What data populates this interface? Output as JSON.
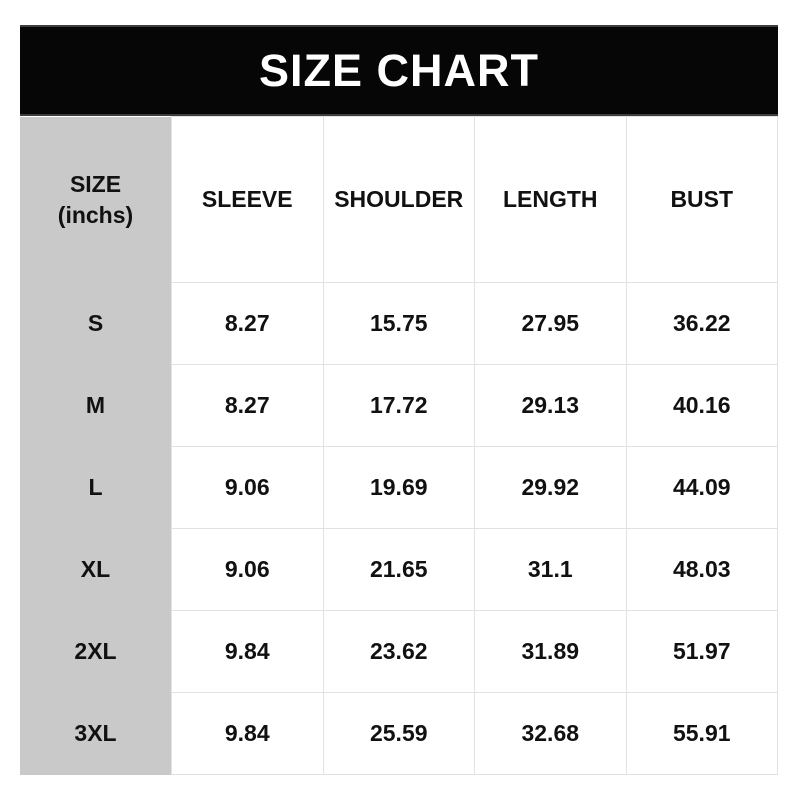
{
  "header": {
    "title": "SIZE CHART"
  },
  "table": {
    "size_header": {
      "line1": "SIZE",
      "line2": "(inchs)"
    },
    "columns": [
      "SLEEVE",
      "SHOULDER",
      "LENGTH",
      "BUST"
    ],
    "rows": [
      {
        "size": "S",
        "values": [
          "8.27",
          "15.75",
          "27.95",
          "36.22"
        ]
      },
      {
        "size": "M",
        "values": [
          "8.27",
          "17.72",
          "29.13",
          "40.16"
        ]
      },
      {
        "size": "L",
        "values": [
          "9.06",
          "19.69",
          "29.92",
          "44.09"
        ]
      },
      {
        "size": "XL",
        "values": [
          "9.06",
          "21.65",
          "31.1",
          "48.03"
        ]
      },
      {
        "size": "2XL",
        "values": [
          "9.84",
          "23.62",
          "31.89",
          "51.97"
        ]
      },
      {
        "size": "3XL",
        "values": [
          "9.84",
          "25.59",
          "32.68",
          "55.91"
        ]
      }
    ]
  },
  "colors": {
    "title_bar_bg": "#060606",
    "title_bar_edge": "#3d3d3d",
    "title_text": "#ffffff",
    "size_column_bg": "#c9c9c9",
    "cell_border": "#e2e2e2",
    "cell_text": "#111111",
    "page_bg": "#ffffff"
  },
  "chart_data": {
    "type": "table",
    "title": "SIZE CHART",
    "unit": "inchs",
    "columns": [
      "SIZE (inchs)",
      "SLEEVE",
      "SHOULDER",
      "LENGTH",
      "BUST"
    ],
    "rows": [
      [
        "S",
        8.27,
        15.75,
        27.95,
        36.22
      ],
      [
        "M",
        8.27,
        17.72,
        29.13,
        40.16
      ],
      [
        "L",
        9.06,
        19.69,
        29.92,
        44.09
      ],
      [
        "XL",
        9.06,
        21.65,
        31.1,
        48.03
      ],
      [
        "2XL",
        9.84,
        23.62,
        31.89,
        51.97
      ],
      [
        "3XL",
        9.84,
        25.59,
        32.68,
        55.91
      ]
    ]
  }
}
